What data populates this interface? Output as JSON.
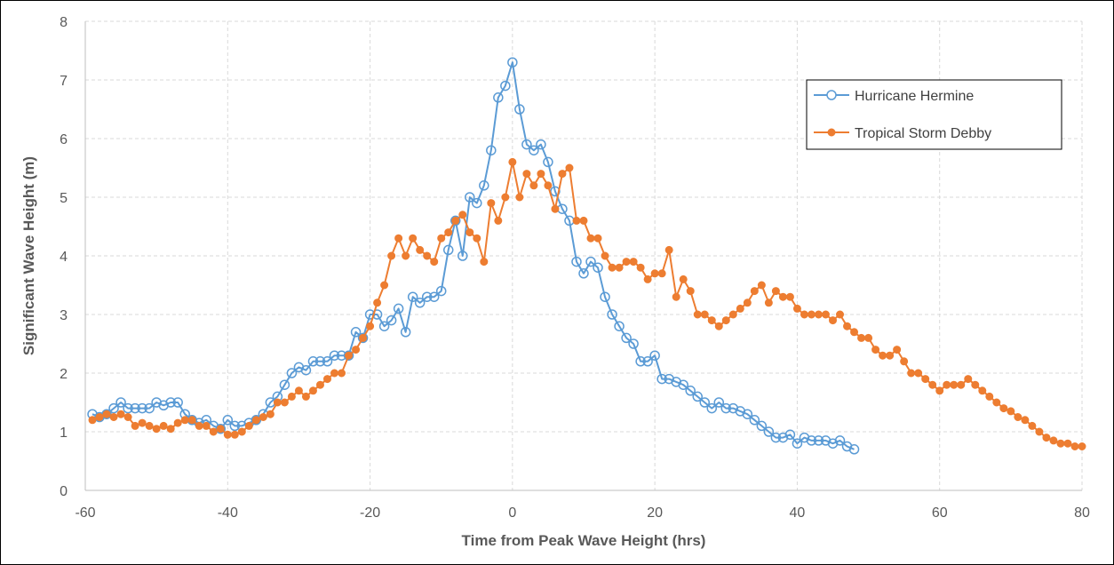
{
  "chart_data": {
    "type": "line",
    "title": "",
    "xlabel": "Time from Peak Wave Height (hrs)",
    "ylabel": "Significant Wave Height (m)",
    "xlim": [
      -60,
      80
    ],
    "ylim": [
      0,
      8
    ],
    "xticks": [
      "-60",
      "-40",
      "-20",
      "0",
      "20",
      "40",
      "60",
      "80"
    ],
    "yticks": [
      "0",
      "1",
      "2",
      "3",
      "4",
      "5",
      "6",
      "7",
      "8"
    ],
    "grid": true,
    "legend_position": "top-right",
    "series": [
      {
        "name": "Hurricane Hermine",
        "color": "#5B9BD5",
        "marker": "open-circle",
        "x": [
          -59,
          -58,
          -57,
          -56,
          -55,
          -54,
          -53,
          -52,
          -51,
          -50,
          -49,
          -48,
          -47,
          -46,
          -45,
          -44,
          -43,
          -42,
          -41,
          -40,
          -39,
          -38,
          -37,
          -36,
          -35,
          -34,
          -33,
          -32,
          -31,
          -30,
          -29,
          -28,
          -27,
          -26,
          -25,
          -24,
          -23,
          -22,
          -21,
          -20,
          -19,
          -18,
          -17,
          -16,
          -15,
          -14,
          -13,
          -12,
          -11,
          -10,
          -9,
          -8,
          -7,
          -6,
          -5,
          -4,
          -3,
          -2,
          -1,
          0,
          1,
          2,
          3,
          4,
          5,
          6,
          7,
          8,
          9,
          10,
          11,
          12,
          13,
          14,
          15,
          16,
          17,
          18,
          19,
          20,
          21,
          22,
          23,
          24,
          25,
          26,
          27,
          28,
          29,
          30,
          31,
          32,
          33,
          34,
          35,
          36,
          37,
          38,
          39,
          40,
          41,
          42,
          43,
          44,
          45,
          46,
          47,
          48
        ],
        "y": [
          1.3,
          1.25,
          1.3,
          1.4,
          1.5,
          1.4,
          1.4,
          1.4,
          1.4,
          1.5,
          1.45,
          1.5,
          1.5,
          1.3,
          1.2,
          1.15,
          1.2,
          1.1,
          1.05,
          1.2,
          1.1,
          1.1,
          1.15,
          1.2,
          1.3,
          1.5,
          1.6,
          1.8,
          2.0,
          2.1,
          2.05,
          2.2,
          2.2,
          2.2,
          2.3,
          2.3,
          2.3,
          2.7,
          2.6,
          3.0,
          3.0,
          2.8,
          2.9,
          3.1,
          2.7,
          3.3,
          3.2,
          3.3,
          3.3,
          3.4,
          4.1,
          4.6,
          4.0,
          5.0,
          4.9,
          5.2,
          5.8,
          6.7,
          6.9,
          7.3,
          6.5,
          5.9,
          5.8,
          5.9,
          5.6,
          5.1,
          4.8,
          4.6,
          3.9,
          3.7,
          3.9,
          3.8,
          3.3,
          3.0,
          2.8,
          2.6,
          2.5,
          2.2,
          2.2,
          2.3,
          1.9,
          1.9,
          1.85,
          1.8,
          1.7,
          1.6,
          1.5,
          1.4,
          1.5,
          1.4,
          1.4,
          1.35,
          1.3,
          1.2,
          1.1,
          1.0,
          0.9,
          0.9,
          0.95,
          0.8,
          0.9,
          0.85,
          0.85,
          0.85,
          0.8,
          0.85,
          0.75,
          0.7
        ]
      },
      {
        "name": "Tropical Storm Debby",
        "color": "#ED7D31",
        "marker": "filled-circle",
        "x": [
          -59,
          -58,
          -57,
          -56,
          -55,
          -54,
          -53,
          -52,
          -51,
          -50,
          -49,
          -48,
          -47,
          -46,
          -45,
          -44,
          -43,
          -42,
          -41,
          -40,
          -39,
          -38,
          -37,
          -36,
          -35,
          -34,
          -33,
          -32,
          -31,
          -30,
          -29,
          -28,
          -27,
          -26,
          -25,
          -24,
          -23,
          -22,
          -21,
          -20,
          -19,
          -18,
          -17,
          -16,
          -15,
          -14,
          -13,
          -12,
          -11,
          -10,
          -9,
          -8,
          -7,
          -6,
          -5,
          -4,
          -3,
          -2,
          -1,
          0,
          1,
          2,
          3,
          4,
          5,
          6,
          7,
          8,
          9,
          10,
          11,
          12,
          13,
          14,
          15,
          16,
          17,
          18,
          19,
          20,
          21,
          22,
          23,
          24,
          25,
          26,
          27,
          28,
          29,
          30,
          31,
          32,
          33,
          34,
          35,
          36,
          37,
          38,
          39,
          40,
          41,
          42,
          43,
          44,
          45,
          46,
          47,
          48,
          49,
          50,
          51,
          52,
          53,
          54,
          55,
          56,
          57,
          58,
          59,
          60,
          61,
          62,
          63,
          64,
          65,
          66,
          67,
          68,
          69,
          70,
          71,
          72,
          73,
          74,
          75,
          76,
          77,
          78,
          79,
          80
        ],
        "y": [
          1.2,
          1.25,
          1.3,
          1.25,
          1.3,
          1.25,
          1.1,
          1.15,
          1.1,
          1.05,
          1.1,
          1.05,
          1.15,
          1.2,
          1.2,
          1.1,
          1.1,
          1.0,
          1.05,
          0.95,
          0.95,
          1.0,
          1.1,
          1.2,
          1.25,
          1.3,
          1.5,
          1.5,
          1.6,
          1.7,
          1.6,
          1.7,
          1.8,
          1.9,
          2.0,
          2.0,
          2.3,
          2.4,
          2.6,
          2.8,
          3.2,
          3.5,
          4.0,
          4.3,
          4.0,
          4.3,
          4.1,
          4.0,
          3.9,
          4.3,
          4.4,
          4.6,
          4.7,
          4.4,
          4.3,
          3.9,
          4.9,
          4.6,
          5.0,
          5.6,
          5.0,
          5.4,
          5.2,
          5.4,
          5.2,
          4.8,
          5.4,
          5.5,
          4.6,
          4.6,
          4.3,
          4.3,
          4.0,
          3.8,
          3.8,
          3.9,
          3.9,
          3.8,
          3.6,
          3.7,
          3.7,
          4.1,
          3.3,
          3.6,
          3.4,
          3.0,
          3.0,
          2.9,
          2.8,
          2.9,
          3.0,
          3.1,
          3.2,
          3.4,
          3.5,
          3.2,
          3.4,
          3.3,
          3.3,
          3.1,
          3.0,
          3.0,
          3.0,
          3.0,
          2.9,
          3.0,
          2.8,
          2.7,
          2.6,
          2.6,
          2.4,
          2.3,
          2.3,
          2.4,
          2.2,
          2.0,
          2.0,
          1.9,
          1.8,
          1.7,
          1.8,
          1.8,
          1.8,
          1.9,
          1.8,
          1.7,
          1.6,
          1.5,
          1.4,
          1.35,
          1.25,
          1.2,
          1.1,
          1.0,
          0.9,
          0.85,
          0.8,
          0.8,
          0.75,
          0.75
        ]
      }
    ]
  }
}
